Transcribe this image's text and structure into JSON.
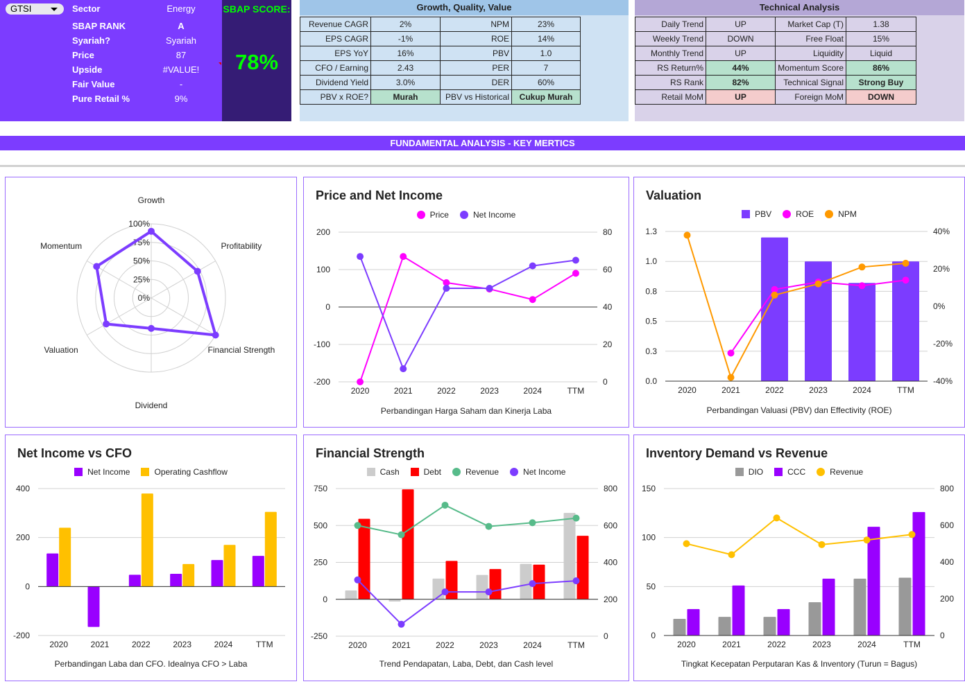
{
  "summary": {
    "ticker": "GTSI",
    "rows": [
      {
        "label": "Sector",
        "value": "Energy"
      },
      {
        "label": "SBAP RANK",
        "value": "A"
      },
      {
        "label": "Syariah?",
        "value": "Syariah"
      },
      {
        "label": "Price",
        "value": "87"
      },
      {
        "label": "Upside",
        "value": "#VALUE!"
      },
      {
        "label": "Fair Value",
        "value": "-"
      },
      {
        "label": "Pure Retail %",
        "value": "9%"
      }
    ],
    "score_label": "SBAP SCORE:",
    "score_value": "78%"
  },
  "growth": {
    "title": "Growth, Quality, Value",
    "rows": [
      [
        "Revenue CAGR",
        "2%",
        "NPM",
        "23%"
      ],
      [
        "EPS CAGR",
        "-1%",
        "ROE",
        "14%"
      ],
      [
        "EPS YoY",
        "16%",
        "PBV",
        "1.0"
      ],
      [
        "CFO / Earning",
        "2.43",
        "PER",
        "7"
      ],
      [
        "Dividend Yield",
        "3.0%",
        "DER",
        "60%"
      ],
      [
        "PBV x ROE?",
        "Murah",
        "PBV vs Historical",
        "Cukup Murah"
      ]
    ]
  },
  "technical": {
    "title": "Technical Analysis",
    "rows": [
      [
        "Daily Trend",
        "UP",
        "Market Cap (T)",
        "1.38"
      ],
      [
        "Weekly Trend",
        "DOWN",
        "Free Float",
        "15%"
      ],
      [
        "Monthly Trend",
        "UP",
        "Liquidity",
        "Liquid"
      ],
      [
        "RS Return%",
        "44%",
        "Momentum Score",
        "86%"
      ],
      [
        "RS Rank",
        "82%",
        "Technical Signal",
        "Strong Buy"
      ],
      [
        "Retail MoM",
        "UP",
        "Foreign MoM",
        "DOWN"
      ]
    ]
  },
  "banner": "FUNDAMENTAL ANALYSIS - KEY MERTICS",
  "colors": {
    "accent": "#7c3cff",
    "score_bg": "#351c75",
    "score_text": "#00ff00",
    "good": "#b7e1cd",
    "bad": "#f4cccc"
  },
  "chart_data": [
    {
      "id": "radar",
      "type": "radar",
      "categories": [
        "Growth",
        "Profitability",
        "Financial Strength",
        "Dividend",
        "Valuation",
        "Momentum"
      ],
      "values": [
        90,
        72,
        100,
        41,
        70,
        85
      ],
      "ticks": [
        "0%",
        "25%",
        "50%",
        "75%",
        "100%"
      ],
      "range": [
        0,
        100
      ],
      "color": "#7c3cff"
    },
    {
      "id": "price",
      "type": "line",
      "title": "Price and Net Income",
      "caption": "Perbandingan Harga Saham dan Kinerja Laba",
      "categories": [
        "2020",
        "2021",
        "2022",
        "2023",
        "2024",
        "TTM"
      ],
      "left_axis": {
        "min": -200,
        "max": 200,
        "ticks": [
          [
            200,
            "200"
          ],
          [
            100,
            "100"
          ],
          [
            0,
            "0"
          ],
          [
            -100,
            "-100"
          ],
          [
            -200,
            "-200"
          ]
        ]
      },
      "right_axis": {
        "min": 0,
        "max": 80,
        "ticks": [
          [
            80,
            "80"
          ],
          [
            60,
            "60"
          ],
          [
            40,
            "40"
          ],
          [
            20,
            "20"
          ],
          [
            0,
            "0"
          ]
        ]
      },
      "baseline": 0,
      "series": [
        {
          "name": "Price",
          "type": "line",
          "axis": "left",
          "color": "#ff00ff",
          "values": [
            -200,
            135,
            65,
            48,
            20,
            90
          ]
        },
        {
          "name": "Net Income",
          "type": "line",
          "axis": "right",
          "color": "#7c3cff",
          "values": [
            67,
            7,
            50,
            50,
            62,
            65
          ]
        }
      ]
    },
    {
      "id": "valuation",
      "type": "bar",
      "title": "Valuation",
      "caption": "Perbandingan Valuasi (PBV) dan Effectivity (ROE)",
      "categories": [
        "2020",
        "2021",
        "2022",
        "2023",
        "2024",
        "TTM"
      ],
      "left_axis": {
        "min": 0,
        "max": 1.25,
        "ticks": [
          [
            1.25,
            "1.3"
          ],
          [
            1,
            "1.0"
          ],
          [
            0.75,
            "0.8"
          ],
          [
            0.5,
            "0.5"
          ],
          [
            0.25,
            "0.3"
          ],
          [
            0,
            "0.0"
          ]
        ]
      },
      "right_axis": {
        "min": -40,
        "max": 40,
        "ticks": [
          [
            40,
            "40%"
          ],
          [
            20,
            "20%"
          ],
          [
            0,
            "0%"
          ],
          [
            -20,
            "-20%"
          ],
          [
            -40,
            "-40%"
          ]
        ]
      },
      "baseline": 0,
      "series": [
        {
          "name": "PBV",
          "type": "bar",
          "axis": "left",
          "color": "#7c3cff",
          "values": [
            null,
            null,
            1.2,
            1.0,
            0.82,
            1.0
          ]
        },
        {
          "name": "ROE",
          "type": "line",
          "axis": "right",
          "color": "#ff00ff",
          "values": [
            null,
            -25,
            9,
            13,
            11,
            14
          ]
        },
        {
          "name": "NPM",
          "type": "line",
          "axis": "right",
          "color": "#ff9900",
          "values": [
            38,
            -38,
            6,
            12,
            21,
            23
          ]
        }
      ]
    },
    {
      "id": "cfo",
      "type": "bar",
      "title": "Net Income vs CFO",
      "caption": "Perbandingan Laba dan CFO. Idealnya CFO > Laba",
      "categories": [
        "2020",
        "2021",
        "2022",
        "2023",
        "2024",
        "TTM"
      ],
      "left_axis": {
        "min": -200,
        "max": 400,
        "ticks": [
          [
            400,
            "400"
          ],
          [
            200,
            "200"
          ],
          [
            0,
            "0"
          ],
          [
            -200,
            "-200"
          ]
        ]
      },
      "baseline": 0,
      "series": [
        {
          "name": "Net Income",
          "type": "bar",
          "axis": "left",
          "color": "#9900ff",
          "values": [
            135,
            -165,
            48,
            52,
            108,
            125
          ]
        },
        {
          "name": "Operating Cashflow",
          "type": "bar",
          "axis": "left",
          "color": "#ffc000",
          "values": [
            240,
            0,
            380,
            92,
            170,
            305
          ]
        }
      ]
    },
    {
      "id": "strength",
      "type": "bar",
      "title": "Financial Strength",
      "caption": "Trend Pendapatan, Laba, Debt, dan Cash level",
      "categories": [
        "2020",
        "2021",
        "2022",
        "2023",
        "2024",
        "TTM"
      ],
      "left_axis": {
        "min": -250,
        "max": 750,
        "ticks": [
          [
            750,
            "750"
          ],
          [
            500,
            "500"
          ],
          [
            250,
            "250"
          ],
          [
            0,
            "0"
          ],
          [
            -250,
            "-250"
          ]
        ]
      },
      "right_axis": {
        "min": 0,
        "max": 800,
        "ticks": [
          [
            800,
            "800"
          ],
          [
            600,
            "600"
          ],
          [
            400,
            "400"
          ],
          [
            200,
            "200"
          ],
          [
            0,
            "0"
          ]
        ]
      },
      "baseline": 0,
      "series": [
        {
          "name": "Cash",
          "type": "bar",
          "axis": "left",
          "color": "#cccccc",
          "values": [
            60,
            -15,
            140,
            165,
            240,
            585
          ]
        },
        {
          "name": "Debt",
          "type": "bar",
          "axis": "left",
          "color": "#ff0000",
          "values": [
            545,
            745,
            260,
            205,
            235,
            430
          ]
        },
        {
          "name": "Revenue",
          "type": "line",
          "axis": "right",
          "color": "#57bb8a",
          "values": [
            600,
            550,
            710,
            595,
            615,
            640
          ]
        },
        {
          "name": "Net Income",
          "type": "line",
          "axis": "right",
          "color": "#7c3cff",
          "values": [
            305,
            65,
            240,
            240,
            285,
            300
          ]
        }
      ]
    },
    {
      "id": "inventory",
      "type": "bar",
      "title": "Inventory Demand vs Revenue",
      "caption": "Tingkat Kecepatan Perputaran Kas & Inventory (Turun = Bagus)",
      "categories": [
        "2020",
        "2021",
        "2022",
        "2023",
        "2024",
        "TTM"
      ],
      "left_axis": {
        "min": 0,
        "max": 150,
        "ticks": [
          [
            150,
            "150"
          ],
          [
            100,
            "100"
          ],
          [
            50,
            "50"
          ],
          [
            0,
            "0"
          ]
        ]
      },
      "right_axis": {
        "min": 0,
        "max": 800,
        "ticks": [
          [
            800,
            "800"
          ],
          [
            600,
            "600"
          ],
          [
            400,
            "400"
          ],
          [
            200,
            "200"
          ],
          [
            0,
            "0"
          ]
        ]
      },
      "baseline": 0,
      "series": [
        {
          "name": "DIO",
          "type": "bar",
          "axis": "left",
          "color": "#999999",
          "values": [
            17,
            19,
            19,
            34,
            58,
            59
          ]
        },
        {
          "name": "CCC",
          "type": "bar",
          "axis": "left",
          "color": "#9900ff",
          "values": [
            27,
            51,
            27,
            58,
            111,
            126
          ]
        },
        {
          "name": "Revenue",
          "type": "line",
          "axis": "right",
          "color": "#ffc000",
          "values": [
            500,
            440,
            640,
            495,
            520,
            550
          ]
        }
      ]
    }
  ]
}
